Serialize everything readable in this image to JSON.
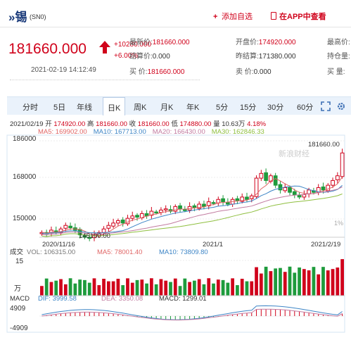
{
  "header": {
    "logo": "»锡",
    "code": "(SN0)",
    "add_label": "添加自选",
    "app_label": "在APP中查看"
  },
  "quote": {
    "price": "181660.000",
    "change": "+10280.000",
    "change_pct": "+6.00%",
    "time": "2021-02-19 14:12:49",
    "fields": [
      {
        "label": "最新价:",
        "value": "181660.000",
        "color": "r"
      },
      {
        "label": "结算价:",
        "value": "0.000",
        "color": "d"
      },
      {
        "label": "买    价:",
        "value": "181660.000",
        "color": "r"
      },
      {
        "label": "开盘价:",
        "value": "174920.000",
        "color": "r"
      },
      {
        "label": "昨结算:",
        "value": "171380.000",
        "color": "d"
      },
      {
        "label": "卖    价:",
        "value": "0.000",
        "color": "d"
      },
      {
        "label": "最高价:",
        "value": "",
        "color": "d"
      },
      {
        "label": "持仓量:",
        "value": "",
        "color": "d"
      },
      {
        "label": "买    量:",
        "value": "",
        "color": "d"
      }
    ]
  },
  "tabs": [
    {
      "label": "分时"
    },
    {
      "label": "5日"
    },
    {
      "label": "年线"
    },
    {
      "label": "日K",
      "active": true
    },
    {
      "label": "周K"
    },
    {
      "label": "月K"
    },
    {
      "label": "年K"
    },
    {
      "label": "5分"
    },
    {
      "label": "15分"
    },
    {
      "label": "30分"
    },
    {
      "label": "60分"
    }
  ],
  "info_bar": {
    "date": "2021/02/19",
    "open_label": "开",
    "open": "174920.00",
    "high_label": "高",
    "high": "181660.00",
    "close_label": "收",
    "close": "181660.00",
    "low_label": "低",
    "low": "174880.00",
    "vol_label": "量",
    "vol": "10.63万",
    "pct": "4.18%"
  },
  "ma_bar": [
    {
      "label": "MA5: 169902.00",
      "color": "#e06666"
    },
    {
      "label": "MA10: 167713.00",
      "color": "#3d85c6"
    },
    {
      "label": "MA20: 166430.00",
      "color": "#c27ba0"
    },
    {
      "label": "MA30: 162846.33",
      "color": "#8fbf3f"
    }
  ],
  "chart_data": {
    "type": "candlestick",
    "y_ticks": [
      "186000",
      "168000",
      "150000"
    ],
    "y_range": [
      146000,
      188000
    ],
    "x_labels": [
      "2020/11/16",
      "2021/1",
      "2021/2/19"
    ],
    "max_label": "181660.00",
    "min_label": "145100.00",
    "pct_right": [
      "1%"
    ],
    "watermark": "新浪财经",
    "volume": {
      "label": "成交",
      "vol": "VOL: 106315.00",
      "ma5": "MA5: 78001.40",
      "ma10": "MA10: 73809.80",
      "y_ticks": [
        "15"
      ],
      "unit": "万"
    },
    "macd": {
      "label": "MACD",
      "dif": "DIF: 3999.58",
      "dea": "DEA: 3350.08",
      "macd": "MACD: 1299.01",
      "y_ticks": [
        "4909",
        "-4909"
      ]
    }
  },
  "colors": {
    "up": "#d0021b",
    "down": "#1e9b3c",
    "accent": "#d0021b",
    "tabbar": "#eaf2fb"
  }
}
